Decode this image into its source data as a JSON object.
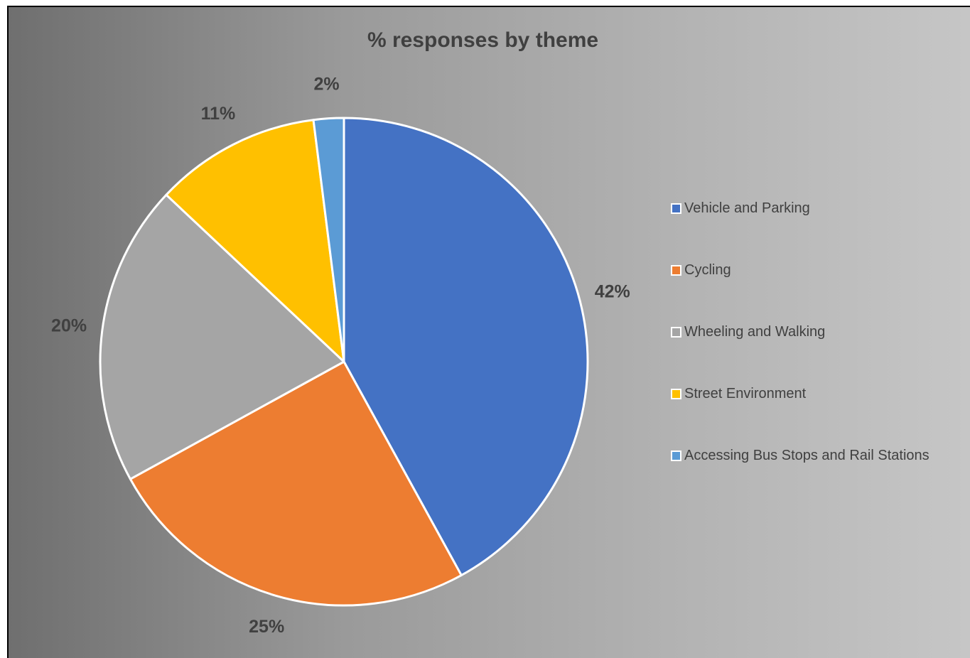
{
  "chart_data": {
    "type": "pie",
    "title": "% responses by theme",
    "categories": [
      "Vehicle and Parking",
      "Cycling",
      "Wheeling and Walking",
      "Street Environment",
      "Accessing Bus Stops and Rail Stations"
    ],
    "values": [
      42,
      25,
      20,
      11,
      2
    ],
    "labels": [
      "42%",
      "25%",
      "20%",
      "11%",
      "2%"
    ],
    "colors": [
      "#4472c4",
      "#ed7d31",
      "#a5a5a5",
      "#ffc000",
      "#5b9bd5"
    ],
    "legend_position": "right"
  }
}
